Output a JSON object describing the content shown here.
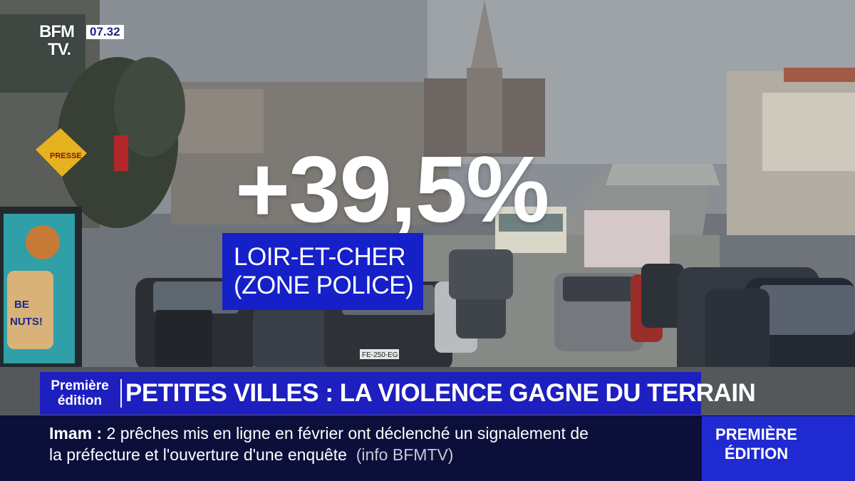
{
  "channel": {
    "logo_line1": "BFM",
    "logo_line2": "TV.",
    "clock": "07.32"
  },
  "stat": {
    "value": "+39,5%",
    "location_line1": "LOIR-ET-CHER",
    "location_line2": "(ZONE POLICE)"
  },
  "banner": {
    "program_line1": "Première",
    "program_line2": "édition",
    "headline": "PETITES VILLES : LA VIOLENCE GAGNE DU TERRAIN"
  },
  "ticker": {
    "keyword": "Imam",
    "separator": " : ",
    "line1": "2 prêches mis en ligne en février ont déclenché un signalement de",
    "line2": "la préfecture et l'ouverture d'une enquête",
    "source": "(info BFMTV)"
  },
  "program_badge": {
    "line1": "PREMIÈRE",
    "line2": "ÉDITION"
  },
  "scene": {
    "shop_sign": "PRESSE",
    "poster_line1": "BE",
    "poster_line2": "NUTS!",
    "plate1": "FE-250-EG"
  },
  "colors": {
    "brand_blue": "#1d1fbf",
    "ticker_bg": "#0b0f3a",
    "badge_blue": "#1f2bd0"
  }
}
